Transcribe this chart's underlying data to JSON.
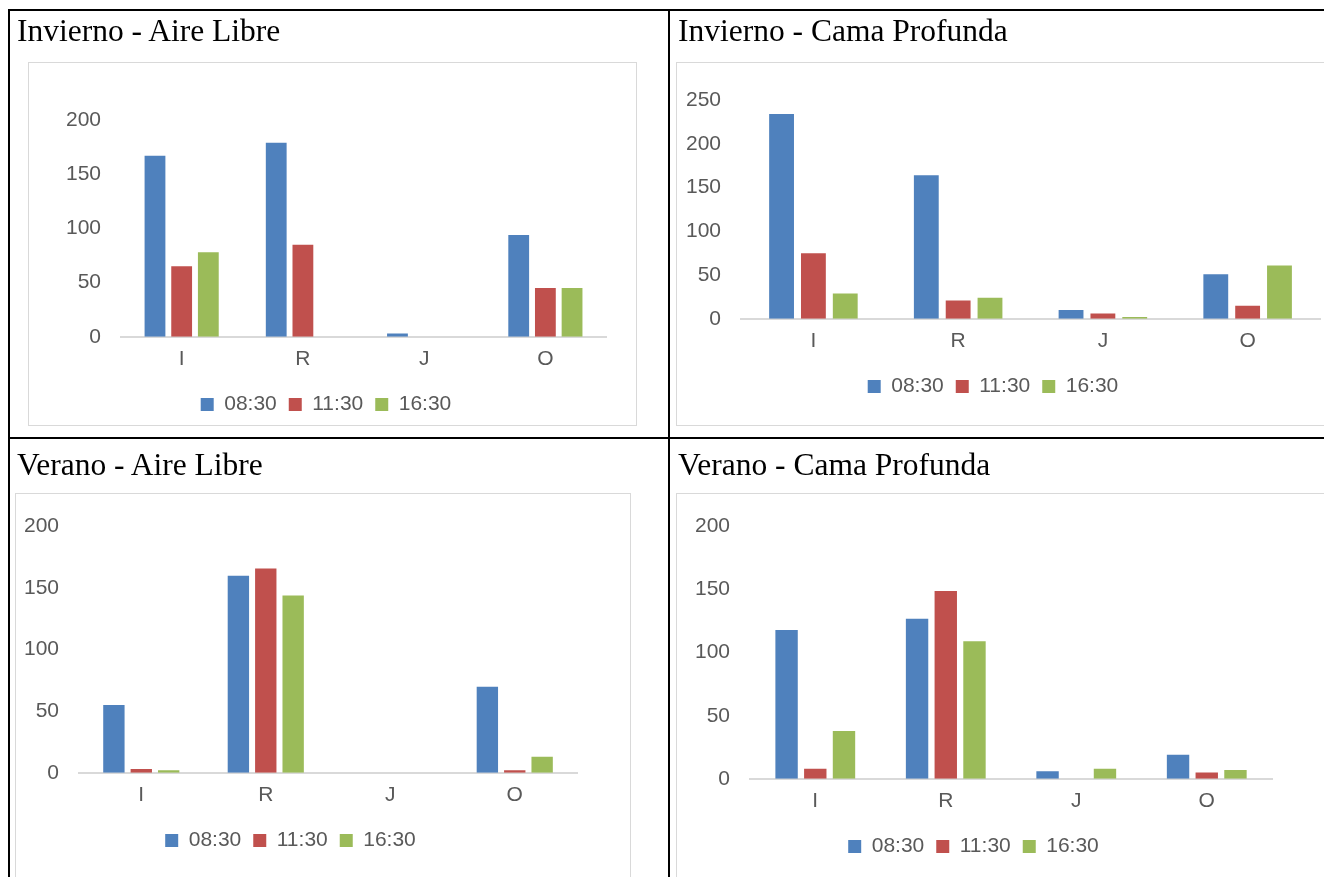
{
  "chart_data": [
    {
      "type": "bar",
      "title": "Invierno - Aire Libre",
      "categories": [
        "I",
        "R",
        "J",
        "O"
      ],
      "series": [
        {
          "name": "08:30",
          "color": "#4f81bd",
          "values": [
            167,
            179,
            3,
            94
          ]
        },
        {
          "name": "11:30",
          "color": "#c0504d",
          "values": [
            65,
            85,
            0,
            45
          ]
        },
        {
          "name": "16:30",
          "color": "#9bbb59",
          "values": [
            78,
            0,
            0,
            45
          ]
        }
      ],
      "ylim": [
        0,
        200
      ],
      "yticks": [
        0,
        50,
        100,
        150,
        200
      ],
      "grid": false,
      "legend": "bottom"
    },
    {
      "type": "bar",
      "title": "Invierno - Cama Profunda",
      "categories": [
        "I",
        "R",
        "J",
        "O"
      ],
      "series": [
        {
          "name": "08:30",
          "color": "#4f81bd",
          "values": [
            234,
            164,
            10,
            51
          ]
        },
        {
          "name": "11:30",
          "color": "#c0504d",
          "values": [
            75,
            21,
            6,
            15
          ]
        },
        {
          "name": "16:30",
          "color": "#9bbb59",
          "values": [
            29,
            24,
            2,
            61
          ]
        }
      ],
      "ylim": [
        0,
        250
      ],
      "yticks": [
        0,
        50,
        100,
        150,
        200,
        250
      ],
      "grid": false,
      "legend": "bottom"
    },
    {
      "type": "bar",
      "title": "Verano - Aire Libre",
      "categories": [
        "I",
        "R",
        "J",
        "O"
      ],
      "series": [
        {
          "name": "08:30",
          "color": "#4f81bd",
          "values": [
            55,
            160,
            0,
            70
          ]
        },
        {
          "name": "11:30",
          "color": "#c0504d",
          "values": [
            3,
            166,
            0,
            2
          ]
        },
        {
          "name": "16:30",
          "color": "#9bbb59",
          "values": [
            2,
            144,
            0,
            13
          ]
        }
      ],
      "ylim": [
        0,
        200
      ],
      "yticks": [
        0,
        50,
        100,
        150,
        200
      ],
      "grid": false,
      "legend": "bottom"
    },
    {
      "type": "bar",
      "title": "Verano - Cama Profunda",
      "categories": [
        "I",
        "R",
        "J",
        "O"
      ],
      "series": [
        {
          "name": "08:30",
          "color": "#4f81bd",
          "values": [
            118,
            127,
            6,
            19
          ]
        },
        {
          "name": "11:30",
          "color": "#c0504d",
          "values": [
            8,
            149,
            0,
            5
          ]
        },
        {
          "name": "16:30",
          "color": "#9bbb59",
          "values": [
            38,
            109,
            8,
            7
          ]
        }
      ],
      "ylim": [
        0,
        200
      ],
      "yticks": [
        0,
        50,
        100,
        150,
        200
      ],
      "grid": false,
      "legend": "bottom"
    }
  ]
}
